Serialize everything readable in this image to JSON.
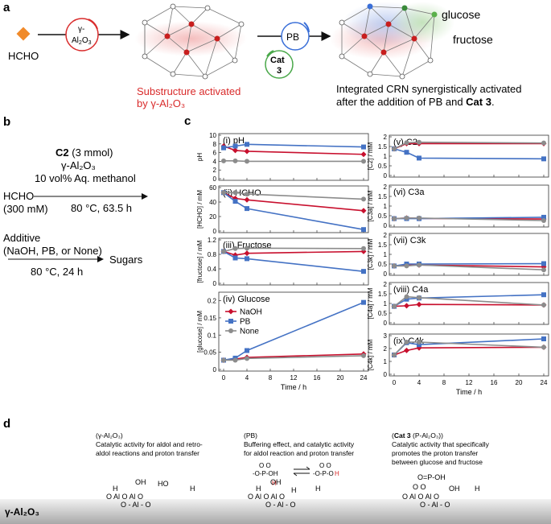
{
  "panel_a": {
    "label": "a",
    "hcho": "HCHO",
    "cat1_line1": "γ-",
    "cat1_line2": "Al",
    "cat1_sub1": "2",
    "cat1_mid": "O",
    "cat1_sub2": "3",
    "pb": "PB",
    "cat3_line1": "Cat",
    "cat3_line2": "3",
    "caption1_line1": "Substructure activated",
    "caption1_line2": "by γ-Al₂O₃",
    "glucose": "glucose",
    "fructose": "fructose",
    "caption2_line1": "Integrated CRN synergistically activated",
    "caption2_line2": "after the addition of PB and ",
    "caption2_bold": "Cat 3",
    "caption2_end": ".",
    "colors": {
      "hcho": "#f08a2a",
      "cat1": "#d92b2b",
      "pb": "#3a6fd8",
      "cat3": "#4aa84a",
      "caption1": "#d92b2b"
    }
  },
  "panel_b": {
    "label": "b",
    "c2": "C2",
    "c2_amount": " (3 mmol)",
    "catalyst": "γ-Al₂O₃",
    "solvent": "10 vol% Aq. methanol",
    "hcho": "HCHO",
    "hcho_conc": "(300 mM)",
    "cond1": "80 °C, 63.5 h",
    "additive": "Additive",
    "additive_options": "(NaOH, PB, or None)",
    "product": "Sugars",
    "cond2": "80 °C, 24 h"
  },
  "panel_c_label": "c",
  "panel_d": {
    "label": "d",
    "col1_title": "(γ-Al₂O₃)",
    "col1_line1": "Catalytic activity for aldol and retro-",
    "col1_line2": "aldol reactions and proton transfer",
    "col2_title": "(PB)",
    "col2_line1": "Buffering effect, and catalytic activity",
    "col2_line2": "for aldol reaction and proton transfer",
    "col3_title_bold": "Cat 3",
    "col3_title_rest": " (P-Al₂O₃))",
    "col3_title_open": "(",
    "col3_line1": "Catalytic activity that specifically",
    "col3_line2": "promotes the proton transfer",
    "col3_line3": "between glucose and fructose",
    "surface_label": "γ-Al₂O₃"
  },
  "chart_data": [
    {
      "type": "line",
      "id": "i",
      "title": "(i) pH",
      "ylabel": "pH",
      "ylim": [
        0,
        10
      ],
      "yticks": [
        0,
        2,
        4,
        6,
        8,
        10
      ],
      "x": [
        0,
        2,
        4,
        24
      ],
      "series": [
        {
          "name": "NaOH",
          "color": "#c8102e",
          "marker": "diamond",
          "values": [
            7.5,
            6.5,
            6.3,
            5.6
          ]
        },
        {
          "name": "PB",
          "color": "#4472c4",
          "marker": "square",
          "values": [
            7.1,
            7.5,
            7.9,
            7.3
          ]
        },
        {
          "name": "None",
          "color": "#8c8c8c",
          "marker": "circle",
          "values": [
            4.1,
            4.1,
            4.0,
            4.0
          ]
        }
      ]
    },
    {
      "type": "line",
      "id": "ii",
      "title": "(ii) HCHO",
      "ylabel": "[HCHO] / mM",
      "ylim": [
        0,
        60
      ],
      "yticks": [
        0,
        20,
        40,
        60
      ],
      "x": [
        0,
        2,
        4,
        24
      ],
      "series": [
        {
          "name": "NaOH",
          "color": "#c8102e",
          "marker": "diamond",
          "values": [
            53,
            45,
            43,
            28
          ]
        },
        {
          "name": "PB",
          "color": "#4472c4",
          "marker": "square",
          "values": [
            53,
            41,
            31,
            2
          ]
        },
        {
          "name": "None",
          "color": "#8c8c8c",
          "marker": "circle",
          "values": [
            53,
            53,
            51,
            44
          ]
        }
      ]
    },
    {
      "type": "line",
      "id": "iii",
      "title": "(iii) Fructose",
      "ylabel": "[fructose] / mM",
      "ylim": [
        0,
        1.2
      ],
      "yticks": [
        0,
        0.4,
        0.8,
        1.2
      ],
      "x": [
        0,
        2,
        4,
        24
      ],
      "series": [
        {
          "name": "NaOH",
          "color": "#c8102e",
          "marker": "diamond",
          "values": [
            0.88,
            0.78,
            0.83,
            0.88
          ]
        },
        {
          "name": "PB",
          "color": "#4472c4",
          "marker": "square",
          "values": [
            0.88,
            0.7,
            0.68,
            0.33
          ]
        },
        {
          "name": "None",
          "color": "#8c8c8c",
          "marker": "circle",
          "values": [
            0.88,
            0.96,
            0.97,
            0.96
          ]
        }
      ]
    },
    {
      "type": "line",
      "id": "iv",
      "title": "(iv) Glucose",
      "ylabel": "[glucose] / mM",
      "ylim": [
        0,
        0.22
      ],
      "yticks": [
        0,
        0.05,
        0.1,
        0.15,
        0.2
      ],
      "x": [
        0,
        2,
        4,
        24
      ],
      "legend": [
        "NaOH",
        "PB",
        "None"
      ],
      "series": [
        {
          "name": "NaOH",
          "color": "#c8102e",
          "marker": "diamond",
          "values": [
            0.027,
            0.03,
            0.035,
            0.045
          ]
        },
        {
          "name": "PB",
          "color": "#4472c4",
          "marker": "square",
          "values": [
            0.027,
            0.033,
            0.055,
            0.195
          ]
        },
        {
          "name": "None",
          "color": "#8c8c8c",
          "marker": "circle",
          "values": [
            0.027,
            0.027,
            0.032,
            0.04
          ]
        }
      ]
    },
    {
      "type": "line",
      "id": "v",
      "title": "(v) C2",
      "ylabel": "[C2] / mM",
      "ylim": [
        0,
        2
      ],
      "yticks": [
        0,
        0.5,
        1,
        1.5,
        2
      ],
      "x": [
        0,
        2,
        4,
        24
      ],
      "series": [
        {
          "name": "NaOH",
          "color": "#c8102e",
          "marker": "diamond",
          "values": [
            1.38,
            1.65,
            1.65,
            1.65
          ]
        },
        {
          "name": "PB",
          "color": "#4472c4",
          "marker": "square",
          "values": [
            1.38,
            1.2,
            0.9,
            0.86
          ]
        },
        {
          "name": "None",
          "color": "#8c8c8c",
          "marker": "circle",
          "values": [
            1.38,
            1.7,
            1.72,
            1.68
          ]
        }
      ]
    },
    {
      "type": "line",
      "id": "vi",
      "title": "(vi) C3a",
      "ylabel": "[C3a] / mM",
      "ylim": [
        0,
        2
      ],
      "yticks": [
        0,
        0.5,
        1,
        1.5,
        2
      ],
      "x": [
        0,
        2,
        4,
        24
      ],
      "series": [
        {
          "name": "NaOH",
          "color": "#c8102e",
          "marker": "diamond",
          "values": [
            0.35,
            0.38,
            0.36,
            0.33
          ]
        },
        {
          "name": "PB",
          "color": "#4472c4",
          "marker": "square",
          "values": [
            0.35,
            0.35,
            0.35,
            0.42
          ]
        },
        {
          "name": "None",
          "color": "#8c8c8c",
          "marker": "circle",
          "values": [
            0.35,
            0.38,
            0.38,
            0.25
          ]
        }
      ]
    },
    {
      "type": "line",
      "id": "vii",
      "title": "(vii) C3k",
      "ylabel": "[C3k] / mM",
      "ylim": [
        0,
        2
      ],
      "yticks": [
        0,
        0.5,
        1,
        1.5,
        2
      ],
      "x": [
        0,
        2,
        4,
        24
      ],
      "series": [
        {
          "name": "NaOH",
          "color": "#c8102e",
          "marker": "diamond",
          "values": [
            0.4,
            0.45,
            0.45,
            0.35
          ]
        },
        {
          "name": "PB",
          "color": "#4472c4",
          "marker": "square",
          "values": [
            0.4,
            0.5,
            0.5,
            0.52
          ]
        },
        {
          "name": "None",
          "color": "#8c8c8c",
          "marker": "circle",
          "values": [
            0.4,
            0.4,
            0.45,
            0.2
          ]
        }
      ]
    },
    {
      "type": "line",
      "id": "viii",
      "title": "(viii) C4a",
      "ylabel": "[C4a] / mM",
      "ylim": [
        0,
        2
      ],
      "yticks": [
        0,
        0.5,
        1,
        1.5,
        2
      ],
      "x": [
        0,
        2,
        4,
        24
      ],
      "series": [
        {
          "name": "NaOH",
          "color": "#c8102e",
          "marker": "diamond",
          "values": [
            0.85,
            0.88,
            0.95,
            0.92
          ]
        },
        {
          "name": "PB",
          "color": "#4472c4",
          "marker": "square",
          "values": [
            0.85,
            1.22,
            1.28,
            1.45
          ]
        },
        {
          "name": "None",
          "color": "#8c8c8c",
          "marker": "circle",
          "values": [
            0.85,
            1.35,
            1.3,
            0.92
          ]
        }
      ]
    },
    {
      "type": "line",
      "id": "ix",
      "title": "(ix) C4k",
      "ylabel": "[C4k] / mM",
      "ylim": [
        0,
        3
      ],
      "yticks": [
        0,
        1,
        2,
        3
      ],
      "x": [
        0,
        2,
        4,
        24
      ],
      "series": [
        {
          "name": "NaOH",
          "color": "#c8102e",
          "marker": "diamond",
          "values": [
            1.5,
            1.85,
            2.05,
            2.1
          ]
        },
        {
          "name": "PB",
          "color": "#4472c4",
          "marker": "square",
          "values": [
            1.5,
            2.45,
            2.3,
            2.75
          ]
        },
        {
          "name": "None",
          "color": "#8c8c8c",
          "marker": "circle",
          "values": [
            1.5,
            2.5,
            2.5,
            2.1
          ]
        }
      ]
    }
  ],
  "xaxis": {
    "label": "Time / h",
    "ticks": [
      0,
      4,
      8,
      12,
      16,
      20,
      24
    ]
  }
}
